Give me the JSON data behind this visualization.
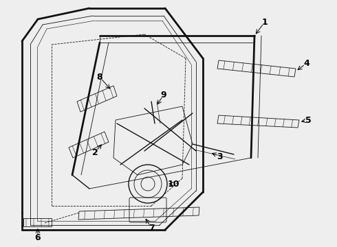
{
  "bg_color": "#eeeeee",
  "line_color": "#111111",
  "label_color": "#000000",
  "label_fontsize": 9,
  "lw_outer": 2.0,
  "lw_inner": 1.0,
  "lw_thin": 0.6
}
